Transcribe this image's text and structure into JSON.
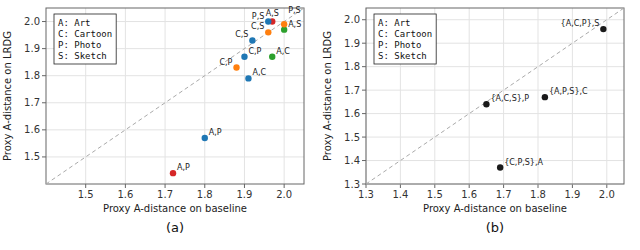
{
  "chart_data": [
    {
      "type": "scatter",
      "title": "(a)",
      "xlabel": "Proxy A-distance on baseline",
      "ylabel": "Proxy A-distance on LRDG",
      "x": [
        1.72,
        1.8,
        1.91,
        1.88,
        1.9,
        1.97,
        1.92,
        1.96,
        2.0,
        1.97,
        1.96,
        2.0
      ],
      "values": [
        1.44,
        1.57,
        1.79,
        1.83,
        1.87,
        1.87,
        1.93,
        1.96,
        1.97,
        2.0,
        2.0,
        1.99
      ],
      "labels": [
        "A,P",
        "A,P",
        "A,C",
        "C,P",
        "C,P",
        "A,C",
        "C,S",
        "C,S",
        "A,S",
        "A,S",
        "P,S",
        "P,S"
      ],
      "colors": [
        "#d62728",
        "#1f77b4",
        "#1f77b4",
        "#ff7f0e",
        "#1f77b4",
        "#2ca02c",
        "#1f77b4",
        "#ff7f0e",
        "#2ca02c",
        "#d62728",
        "#1f77b4",
        "#ff7f0e"
      ],
      "xlim": [
        1.4,
        2.05
      ],
      "ylim": [
        1.4,
        2.05
      ],
      "xticks": [
        1.5,
        1.6,
        1.7,
        1.8,
        1.9,
        {
          "value": 2,
          "label": "2.0"
        }
      ],
      "yticks": [
        1.5,
        1.6,
        1.7,
        1.8,
        1.9,
        {
          "value": 2,
          "label": "2.0"
        }
      ],
      "annotation": "A: Art\nC: Cartoon\nP: Photo\nS: Sketch",
      "grid": true
    },
    {
      "type": "scatter",
      "title": "(b)",
      "xlabel": "Proxy A-distance on baseline",
      "ylabel": "Proxy A-distance on LRDG",
      "x": [
        1.69,
        1.65,
        1.82,
        1.99
      ],
      "values": [
        1.37,
        1.64,
        1.67,
        1.96
      ],
      "labels": [
        "{C,P,S},A",
        "{A,C,S},P",
        "{A,P,S},C",
        "{A,C,P},S"
      ],
      "color": "#1a1a1a",
      "xlim": [
        1.3,
        2.05
      ],
      "ylim": [
        1.3,
        2.05
      ],
      "xticks": [
        1.3,
        1.4,
        1.5,
        1.6,
        1.7,
        1.8,
        1.9,
        {
          "value": 2,
          "label": "2.0"
        }
      ],
      "yticks": [
        1.3,
        1.4,
        1.5,
        1.6,
        1.7,
        1.8,
        1.9,
        {
          "value": 2,
          "label": "2.0"
        }
      ],
      "annotation": "A: Art\nC: Cartoon\nP: Photo\nS: Sketch",
      "grid": true
    }
  ]
}
